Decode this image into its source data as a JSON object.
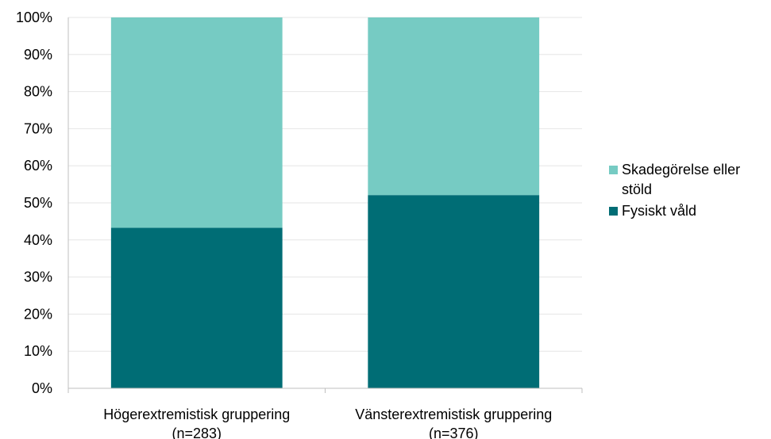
{
  "chart_data": {
    "type": "bar",
    "stacked": true,
    "title": "",
    "xlabel": "",
    "ylabel": "",
    "ylim": [
      0,
      100
    ],
    "yticks": [
      "0%",
      "10%",
      "20%",
      "30%",
      "40%",
      "50%",
      "60%",
      "70%",
      "80%",
      "90%",
      "100%"
    ],
    "categories": [
      [
        "Högerextremistisk gruppering",
        "(n=283)"
      ],
      [
        "Vänsterextremistisk gruppering",
        "(n=376)"
      ]
    ],
    "series": [
      {
        "name": "Fysiskt våld",
        "color": "#006d75",
        "values": [
          43.3,
          52.1
        ]
      },
      {
        "name": "Skadegörelse eller stöld",
        "color": "#76cbc3",
        "values": [
          56.7,
          47.9
        ]
      }
    ],
    "grid": true,
    "legend_position": "right"
  },
  "legend": {
    "items": [
      {
        "label_line1": "Skadegörelse eller",
        "label_line2": "stöld",
        "color": "#76cbc3"
      },
      {
        "label_line1": "Fysiskt våld",
        "label_line2": "",
        "color": "#006d75"
      }
    ]
  }
}
